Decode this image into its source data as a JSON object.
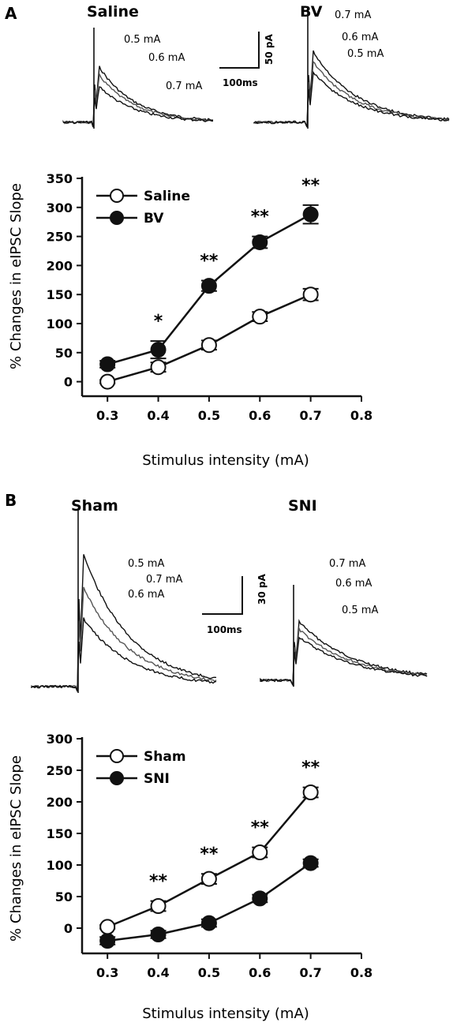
{
  "panel_labels": [
    "A",
    "B"
  ],
  "traces": {
    "A": {
      "conditions": [
        "Saline",
        "BV"
      ],
      "left_amps": [
        "0.5 mA",
        "0.6 mA",
        "0.7 mA"
      ],
      "right_amps": [
        "0.7 mA",
        "0.6 mA",
        "0.5 mA"
      ],
      "scale_y": "50 pA",
      "scale_x": "100ms"
    },
    "B": {
      "conditions": [
        "Sham",
        "SNI"
      ],
      "left_amps": [
        "0.5 mA",
        "0.6 mA",
        "0.7 mA"
      ],
      "right_amps": [
        "0.7 mA",
        "0.6 mA",
        "0.5 mA"
      ],
      "scale_y": "30 pA",
      "scale_x": "100ms"
    }
  },
  "colors": {
    "ink": "#111111",
    "trace_light": "#777777"
  },
  "chart_data": [
    {
      "type": "line",
      "xlabel": "Stimulus intensity (mA)",
      "ylabel": "% Changes in eIPSC Slope",
      "xlim": [
        0.25,
        0.8
      ],
      "ylim": [
        -25,
        350
      ],
      "xticks": [
        "0.3",
        "0.4",
        "0.5",
        "0.6",
        "0.7",
        "0.8"
      ],
      "yticks": [
        "0",
        "50",
        "100",
        "150",
        "200",
        "250",
        "300",
        "350"
      ],
      "x": [
        0.3,
        0.4,
        0.5,
        0.6,
        0.7
      ],
      "legend_position": "top-left",
      "series": [
        {
          "name": "Saline",
          "marker": "open",
          "values": [
            0,
            25,
            63,
            112,
            150
          ],
          "errors": [
            3,
            8,
            8,
            8,
            10
          ]
        },
        {
          "name": "BV",
          "marker": "filled",
          "values": [
            30,
            55,
            165,
            240,
            288
          ],
          "errors": [
            6,
            15,
            9,
            10,
            16
          ]
        }
      ],
      "significance": [
        {
          "x": 0.4,
          "label": "*"
        },
        {
          "x": 0.5,
          "label": "**"
        },
        {
          "x": 0.6,
          "label": "**"
        },
        {
          "x": 0.7,
          "label": "**"
        }
      ]
    },
    {
      "type": "line",
      "xlabel": "Stimulus intensity (mA)",
      "ylabel": "% Changes in eIPSC Slope",
      "xlim": [
        0.25,
        0.8
      ],
      "ylim": [
        -40,
        300
      ],
      "xticks": [
        "0.3",
        "0.4",
        "0.5",
        "0.6",
        "0.7",
        "0.8"
      ],
      "yticks": [
        "0",
        "50",
        "100",
        "150",
        "200",
        "250",
        "300"
      ],
      "x": [
        0.3,
        0.4,
        0.5,
        0.6,
        0.7
      ],
      "legend_position": "top-left",
      "series": [
        {
          "name": "Sham",
          "marker": "open",
          "values": [
            2,
            35,
            78,
            120,
            215
          ],
          "errors": [
            3,
            8,
            8,
            8,
            8
          ]
        },
        {
          "name": "SNI",
          "marker": "filled",
          "values": [
            -20,
            -10,
            8,
            47,
            103
          ],
          "errors": [
            6,
            6,
            6,
            6,
            6
          ]
        }
      ],
      "significance": [
        {
          "x": 0.4,
          "label": "**"
        },
        {
          "x": 0.5,
          "label": "**"
        },
        {
          "x": 0.6,
          "label": "**"
        },
        {
          "x": 0.7,
          "label": "**"
        }
      ]
    }
  ]
}
